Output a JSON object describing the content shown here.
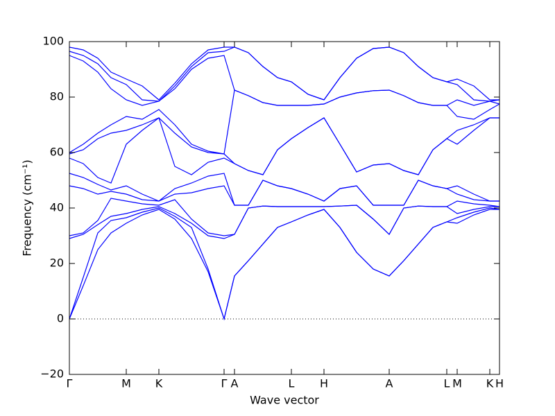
{
  "chart_data": {
    "type": "line",
    "xlabel": "Wave vector",
    "ylabel": "Frequency (cm⁻¹)",
    "color": "#0000ff",
    "xlim": [
      0,
      6.2
    ],
    "ylim": [
      -20,
      100
    ],
    "xticks": [
      {
        "value": 0,
        "label": "Γ"
      },
      {
        "value": 0.82,
        "label": "M"
      },
      {
        "value": 1.29,
        "label": "K"
      },
      {
        "value": 2.23,
        "label": "Γ"
      },
      {
        "value": 2.38,
        "label": "A"
      },
      {
        "value": 3.2,
        "label": "L"
      },
      {
        "value": 3.67,
        "label": "H"
      },
      {
        "value": 4.61,
        "label": "A"
      },
      {
        "value": 5.44,
        "label": "L"
      },
      {
        "value": 5.59,
        "label": "M"
      },
      {
        "value": 6.06,
        "label": "K"
      },
      {
        "value": 6.2,
        "label": "H"
      }
    ],
    "yticks": [
      {
        "value": -20,
        "label": "−20"
      },
      0,
      20,
      40,
      60,
      80,
      100
    ],
    "x": [
      0,
      0.2,
      0.41,
      0.6,
      0.82,
      1.05,
      1.29,
      1.52,
      1.76,
      2.0,
      2.23,
      2.38,
      2.58,
      2.79,
      3.0,
      3.2,
      3.44,
      3.67,
      3.9,
      4.14,
      4.38,
      4.61,
      4.82,
      5.03,
      5.24,
      5.44,
      5.59,
      5.83,
      6.06,
      6.2
    ],
    "series": [
      {
        "values": [
          0,
          12,
          25,
          31,
          34.5,
          37.5,
          39.5,
          36,
          29,
          17,
          0,
          15.5,
          21,
          27,
          33,
          35,
          37.5,
          39.5,
          33,
          24,
          18,
          15.5,
          21,
          27,
          33,
          35,
          34.5,
          37.5,
          39.5,
          39.5
        ]
      },
      {
        "values": [
          0,
          15,
          31,
          35.5,
          36.5,
          38.5,
          40,
          37,
          33,
          18,
          0,
          15.5,
          21,
          27,
          33,
          35,
          37.5,
          39.5,
          33,
          24,
          18,
          15.5,
          21,
          27,
          33,
          35,
          36.5,
          38.5,
          40,
          39.5
        ]
      },
      {
        "values": [
          29,
          30.5,
          34,
          37,
          38,
          39.5,
          40.5,
          38,
          34.5,
          30,
          29,
          30.5,
          40,
          40.7,
          40.5,
          40.5,
          40.5,
          40.5,
          40.7,
          41,
          36,
          30.5,
          40,
          40.7,
          40.5,
          40.5,
          38,
          39.5,
          40.5,
          40.5
        ]
      },
      {
        "values": [
          30,
          31,
          35.5,
          43.5,
          42.5,
          41.5,
          41,
          43,
          36,
          31,
          30,
          30.5,
          40,
          40.7,
          40.5,
          40.5,
          40.5,
          40.5,
          40.7,
          41,
          36,
          30.5,
          40,
          40.7,
          40.5,
          40.5,
          42.5,
          41.5,
          41,
          40.5
        ]
      },
      {
        "values": [
          48,
          47,
          45,
          46,
          45,
          43,
          42.5,
          45,
          45.5,
          47,
          48,
          41,
          41,
          50,
          48,
          47,
          45,
          42.5,
          47,
          48,
          41,
          41,
          41,
          50,
          48,
          47,
          45,
          43,
          42.5,
          42.5
        ]
      },
      {
        "values": [
          52.5,
          51,
          48.5,
          46.5,
          48,
          45,
          42.5,
          47,
          49,
          51.5,
          52.5,
          41,
          41,
          50,
          48,
          47,
          45,
          42.5,
          47,
          48,
          41,
          41,
          41,
          50,
          48,
          47,
          48,
          45,
          42.5,
          42.5
        ]
      },
      {
        "values": [
          58,
          56,
          51,
          49,
          63,
          68,
          72.5,
          55,
          52,
          56.5,
          58,
          56,
          53.5,
          52,
          61,
          65,
          69,
          72.5,
          63,
          53,
          55.5,
          56,
          53.5,
          52,
          61,
          65,
          63,
          68,
          72.5,
          72.5
        ]
      },
      {
        "values": [
          59.5,
          61,
          65,
          67,
          68,
          70,
          72.5,
          67,
          62,
          60,
          59.5,
          56,
          53.5,
          52,
          61,
          65,
          69,
          72.5,
          63,
          53,
          55.5,
          56,
          53.5,
          52,
          61,
          65,
          68,
          70,
          72.5,
          72.5
        ]
      },
      {
        "values": [
          60,
          63,
          67,
          70,
          73,
          72,
          75.5,
          70,
          63,
          60.5,
          59.5,
          82.5,
          80.5,
          78,
          77,
          77,
          77,
          77.5,
          80,
          81.5,
          82.3,
          82.5,
          80.5,
          78,
          77,
          77,
          73,
          72,
          75.5,
          77.5
        ]
      },
      {
        "values": [
          95,
          93,
          89,
          83,
          79,
          77,
          78.5,
          83,
          90,
          94,
          95,
          82.5,
          80.5,
          78,
          77,
          77,
          77,
          77.5,
          80,
          81.5,
          82.3,
          82.5,
          80.5,
          78,
          77,
          77,
          79,
          77,
          78.5,
          77.5
        ]
      },
      {
        "values": [
          96.5,
          95,
          92,
          87,
          84.5,
          79,
          78.5,
          84,
          91,
          96,
          96.5,
          98,
          96,
          91,
          87,
          85.5,
          81,
          79,
          87,
          94,
          97.5,
          98,
          96,
          91,
          87,
          85.5,
          84.5,
          79,
          78.5,
          79
        ]
      },
      {
        "values": [
          98,
          97,
          94,
          89,
          86.5,
          84,
          79,
          85,
          92,
          97,
          98,
          98,
          96,
          91,
          87,
          85.5,
          81,
          79,
          87,
          94,
          97.5,
          98,
          96,
          91,
          87,
          85.5,
          86.5,
          84,
          79,
          79
        ]
      }
    ]
  }
}
